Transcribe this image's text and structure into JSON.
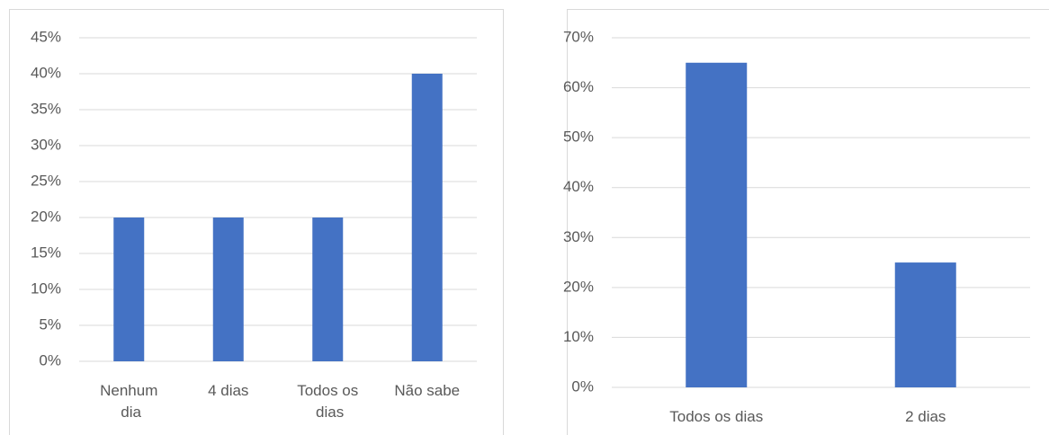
{
  "chart_data": [
    {
      "type": "bar",
      "categories": [
        "Nenhum dia",
        "4 dias",
        "Todos os dias",
        "Não sabe"
      ],
      "values": [
        20,
        20,
        20,
        40
      ],
      "color": "#4472c4",
      "ylim": [
        0,
        45
      ],
      "yticks": [
        {
          "value": 0,
          "label": "0%"
        },
        {
          "value": 5,
          "label": "5%"
        },
        {
          "value": 10,
          "label": "10%"
        },
        {
          "value": 15,
          "label": "15%"
        },
        {
          "value": 20,
          "label": "20%"
        },
        {
          "value": 25,
          "label": "25%"
        },
        {
          "value": 30,
          "label": "30%"
        },
        {
          "value": 35,
          "label": "35%"
        },
        {
          "value": 40,
          "label": "40%"
        },
        {
          "value": 45,
          "label": "45%"
        }
      ],
      "grid": true
    },
    {
      "type": "bar",
      "categories": [
        "Todos os dias",
        "2 dias"
      ],
      "values": [
        65,
        25
      ],
      "color": "#4472c4",
      "ylim": [
        0,
        70
      ],
      "yticks": [
        {
          "value": 0,
          "label": "0%"
        },
        {
          "value": 10,
          "label": "10%"
        },
        {
          "value": 20,
          "label": "20%"
        },
        {
          "value": 30,
          "label": "30%"
        },
        {
          "value": 40,
          "label": "40%"
        },
        {
          "value": 50,
          "label": "50%"
        },
        {
          "value": 60,
          "label": "60%"
        },
        {
          "value": 70,
          "label": "70%"
        }
      ],
      "grid": true
    }
  ]
}
